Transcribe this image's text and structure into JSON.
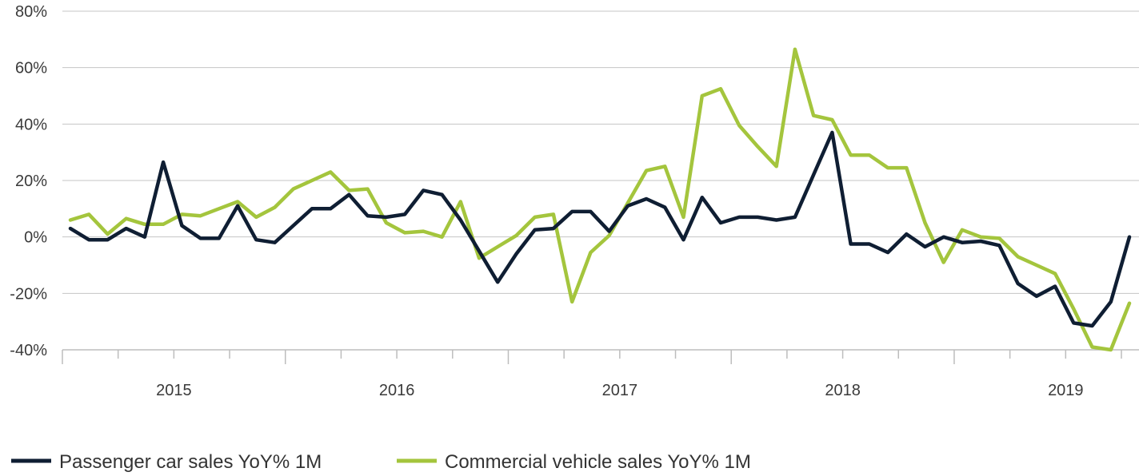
{
  "chart_data": {
    "type": "line",
    "title": "",
    "xlabel": "",
    "ylabel": "",
    "ylim": [
      -40,
      80
    ],
    "y_ticks": [
      "80%",
      "60%",
      "40%",
      "20%",
      "0%",
      "-20%",
      "-40%"
    ],
    "y_tick_values": [
      80,
      60,
      40,
      20,
      0,
      -20,
      -40
    ],
    "year_labels": [
      "2015",
      "2016",
      "2017",
      "2018",
      "2019"
    ],
    "grid": "horizontal",
    "legend_position": "bottom",
    "series": [
      {
        "name": "Passenger car sales YoY% 1M",
        "color": "#0f1e33",
        "values": [
          3,
          -1,
          -1,
          3,
          0,
          26.5,
          4,
          -0.5,
          -0.5,
          11,
          -1,
          -2,
          4,
          10,
          10,
          15,
          7.5,
          7,
          8,
          16.5,
          15,
          6,
          -5,
          -16,
          -6,
          2.5,
          3,
          9,
          9,
          2,
          11,
          13.5,
          10.5,
          -1,
          14,
          5,
          7,
          7,
          6,
          7,
          22,
          37,
          -2.5,
          -2.5,
          -5.5,
          1,
          -3.5,
          0,
          -2,
          -1.5,
          -3,
          -16.5,
          -21,
          -17.5,
          -30.5,
          -31.5,
          -23,
          0
        ]
      },
      {
        "name": "Commercial vehicle sales YoY% 1M",
        "color": "#a4c53d",
        "values": [
          6,
          8,
          1,
          6.5,
          4.5,
          4.5,
          8,
          7.5,
          10,
          12.5,
          7,
          10.5,
          17,
          20,
          23,
          16.5,
          17,
          5,
          1.5,
          2,
          0,
          12.5,
          -7.5,
          -3.5,
          0.5,
          7,
          8,
          -23,
          -5.5,
          0.5,
          12,
          23.5,
          25,
          7,
          50,
          52.5,
          39.5,
          32,
          25,
          66.5,
          43,
          41.5,
          29,
          29,
          24.5,
          24.5,
          5,
          -9,
          2.5,
          0,
          -0.5,
          -7,
          -10,
          -13,
          -25.5,
          -39,
          -40,
          -23.5
        ]
      }
    ]
  }
}
